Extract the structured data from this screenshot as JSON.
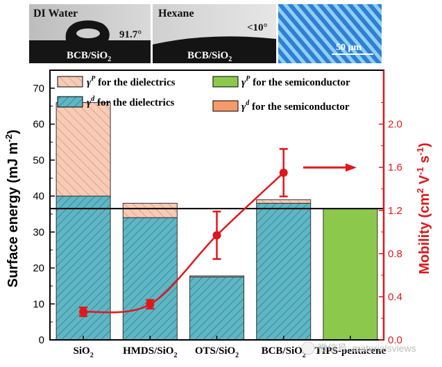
{
  "panels": [
    {
      "liquid": "DI Water",
      "angle": "91.7°",
      "substrate": "BCB/SiO",
      "substrate_sub": "2"
    },
    {
      "liquid": "Hexane",
      "angle": "<10°",
      "substrate": "BCB/SiO",
      "substrate_sub": "2"
    },
    {
      "scale": "50 μm"
    }
  ],
  "watermark": "微信号: materialsviews",
  "colors": {
    "dispersive": "#5fb6c4",
    "polar": "#f7cbb6",
    "semi_polar": "#8cc84b",
    "semi_disp": "#f79a6b",
    "mobility": "#e0161b",
    "axis": "#000000",
    "photo_bg": "#3a88d8"
  },
  "chart_data": {
    "type": "bar",
    "categories": [
      {
        "main": "SiO",
        "sub": "2"
      },
      {
        "main": "HMDS/SiO",
        "sub": "2"
      },
      {
        "main": "OTS/SiO",
        "sub": "2"
      },
      {
        "main": "BCB/SiO",
        "sub": "2"
      },
      {
        "main": "TIPS-pentacene",
        "sub": ""
      }
    ],
    "series": [
      {
        "name": "γd for the dielectrics",
        "values": [
          40,
          34,
          17.5,
          38,
          null
        ]
      },
      {
        "name": "γP for the dielectrics",
        "values": [
          26,
          4,
          0.3,
          1,
          null
        ]
      },
      {
        "name": "γP for the semiconductor",
        "values": [
          null,
          null,
          null,
          null,
          36.5
        ]
      },
      {
        "name": "γd for the semiconductor",
        "values": [
          null,
          null,
          null,
          null,
          0
        ]
      }
    ],
    "legend": [
      {
        "sym": "γ",
        "sup": "P",
        "text": " for the dielectrics"
      },
      {
        "sym": "γ",
        "sup": "d",
        "text": " for the dielectrics"
      },
      {
        "sym": "γ",
        "sup": "P",
        "text": " for the semiconductor"
      },
      {
        "sym": "γ",
        "sup": "d",
        "text": " for the semiconductor"
      }
    ],
    "reference_line": 36.5,
    "ylabel": "Surface energy (mJ m",
    "ylabel_sup": "-2",
    "ylabel_end": ")",
    "ylim": [
      0,
      75
    ],
    "yticks": [
      0,
      10,
      20,
      30,
      40,
      50,
      60,
      70
    ],
    "mobility": {
      "x_index": [
        0,
        1,
        2,
        3
      ],
      "values": [
        0.26,
        0.33,
        0.97,
        1.55
      ],
      "errors": [
        0.04,
        0.04,
        0.22,
        0.22
      ],
      "ylabel": "Mobility (cm",
      "ylabel_sup1": "2",
      "ylabel_mid": " V",
      "ylabel_sup2": "-1",
      "ylabel_mid2": " s",
      "ylabel_sup3": "-1",
      "ylabel_end": ")",
      "ylim": [
        0,
        2.5
      ],
      "yticks": [
        "0.0",
        "0.4",
        "0.8",
        "1.2",
        "1.6",
        "2.0"
      ]
    }
  }
}
